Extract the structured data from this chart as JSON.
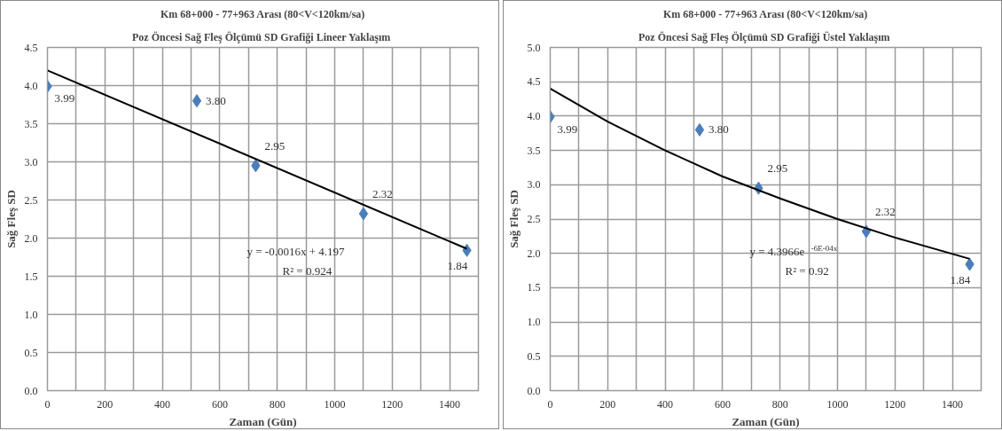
{
  "chart_data": [
    {
      "type": "scatter",
      "title": "Km 68+000 - 77+963 Arası (80<V<120km/sa)",
      "subtitle": "Poz Öncesi Sağ Fleş Ölçümü  SD Grafiği Lineer Yaklaşım",
      "xlabel": "Zaman (Gün)",
      "ylabel": "Sağ Fleş SD",
      "series": [
        {
          "color": "#4a7ebb",
          "marker": "diamond",
          "x": [
            0,
            520,
            725,
            1100,
            1460
          ],
          "values": [
            3.99,
            3.8,
            2.95,
            2.32,
            1.84
          ],
          "value_labels": [
            "3.99",
            "3.80",
            "2.95",
            "2.32",
            "1.84"
          ]
        },
        {
          "type": "line",
          "marker": "none",
          "color": "#000000",
          "x": [
            0,
            1460
          ],
          "values": [
            4.2,
            1.86
          ]
        }
      ],
      "grid": true,
      "annotations": [
        "y = -0.0016x + 4.197",
        "R² = 0.924"
      ],
      "xlim": [
        0,
        1500
      ],
      "xticks": [
        0,
        {
          "value": 100,
          "label": null
        },
        200,
        {
          "value": 300,
          "label": null
        },
        400,
        {
          "value": 500,
          "label": null
        },
        600,
        {
          "value": 700,
          "label": null
        },
        800,
        {
          "value": 900,
          "label": null
        },
        1000,
        {
          "value": 1100,
          "label": null
        },
        1200,
        {
          "value": 1300,
          "label": null
        },
        1400
      ],
      "ylim": [
        0,
        4.5
      ],
      "yticks": [
        {
          "value": 0,
          "label": "0.0"
        },
        0.5,
        {
          "value": 1,
          "label": "1.0"
        },
        1.5,
        {
          "value": 2,
          "label": "2.0"
        },
        2.5,
        {
          "value": 3,
          "label": "3.0"
        },
        3.5,
        {
          "value": 4,
          "label": "4.0"
        },
        4.5
      ]
    },
    {
      "type": "scatter",
      "title": "Km 68+000 - 77+963 Arası (80<V<120km/sa)",
      "subtitle": "Poz Öncesi Sağ Fleş Ölçümü  SD Grafiği Üstel Yaklaşım",
      "xlabel": "Zaman (Gün)",
      "ylabel": "Sağ Fleş SD",
      "series": [
        {
          "color": "#4a7ebb",
          "marker": "diamond",
          "x": [
            0,
            520,
            725,
            1100,
            1460
          ],
          "values": [
            3.99,
            3.8,
            2.95,
            2.32,
            1.84
          ],
          "value_labels": [
            "3.99",
            "3.80",
            "2.95",
            "2.32",
            "1.84"
          ]
        },
        {
          "type": "line",
          "marker": "none",
          "color": "#000000",
          "x": [
            0,
            200,
            400,
            600,
            800,
            1000,
            1200,
            1460
          ],
          "values": [
            4.4,
            3.92,
            3.5,
            3.12,
            2.8,
            2.5,
            2.23,
            1.92
          ]
        }
      ],
      "grid": true,
      "annotations": [
        "y = 4.3966e$^{-6E-04x}$",
        "R² = 0.92"
      ],
      "xlim": [
        0,
        1500
      ],
      "xticks": [
        0,
        {
          "value": 100,
          "label": null
        },
        200,
        {
          "value": 300,
          "label": null
        },
        400,
        {
          "value": 500,
          "label": null
        },
        600,
        {
          "value": 700,
          "label": null
        },
        800,
        {
          "value": 900,
          "label": null
        },
        1000,
        {
          "value": 1100,
          "label": null
        },
        1200,
        {
          "value": 1300,
          "label": null
        },
        1400
      ],
      "ylim": [
        0,
        5
      ],
      "yticks": [
        {
          "value": 0,
          "label": "0.0"
        },
        0.5,
        {
          "value": 1,
          "label": "1.0"
        },
        1.5,
        {
          "value": 2,
          "label": "2.0"
        },
        2.5,
        {
          "value": 3,
          "label": "3.0"
        },
        3.5,
        {
          "value": 4,
          "label": "4.0"
        },
        4.5,
        {
          "value": 5,
          "label": "5.0"
        }
      ]
    }
  ]
}
